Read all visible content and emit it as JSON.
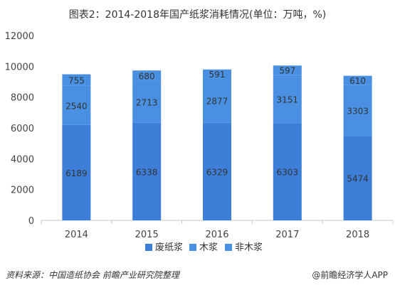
{
  "chart_data": {
    "type": "bar",
    "stacked": true,
    "title": "图表2：2014-2018年国产纸浆消耗情况(单位：万吨，%)",
    "categories": [
      "2014",
      "2015",
      "2016",
      "2017",
      "2018"
    ],
    "series": [
      {
        "name": "废纸浆",
        "values": [
          6189,
          6338,
          6329,
          6303,
          5474
        ],
        "color": "#3d7fd8"
      },
      {
        "name": "木浆",
        "values": [
          2540,
          2713,
          2877,
          3151,
          3303
        ],
        "color": "#4a90e2"
      },
      {
        "name": "非木浆",
        "values": [
          755,
          680,
          591,
          597,
          610
        ],
        "color": "#4a90e2"
      }
    ],
    "y_ticks": [
      "0",
      "2000",
      "4000",
      "6000",
      "8000",
      "10000",
      "12000"
    ],
    "ylim": [
      0,
      12000
    ],
    "legend_position": "bottom",
    "grid": false
  },
  "footer": {
    "source": "资料来源：中国造纸协会 前瞻产业研究院整理",
    "brand": "@前瞻经济学人APP"
  }
}
